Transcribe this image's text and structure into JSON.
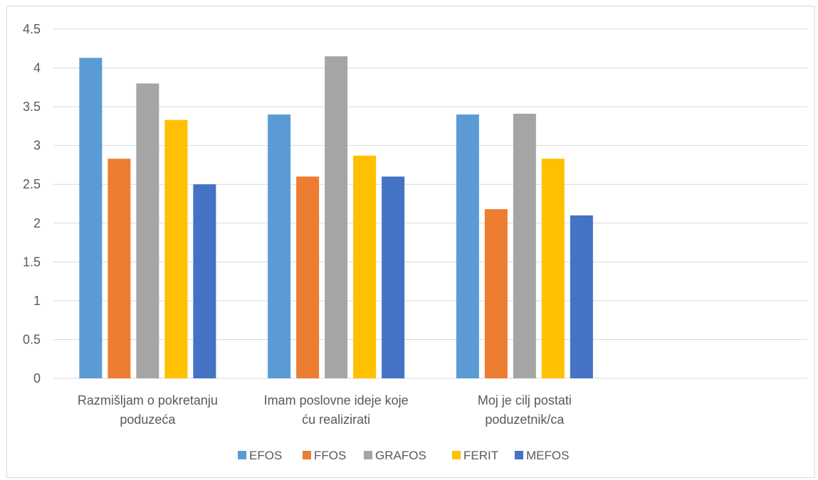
{
  "chart_data": {
    "type": "bar",
    "categories": [
      [
        "Razmišljam o pokretanju",
        "poduzeća"
      ],
      [
        "Imam poslovne ideje koje",
        "ću realizirati"
      ],
      [
        "Moj je cilj postati",
        "poduzetnik/ca"
      ]
    ],
    "series": [
      {
        "name": "EFOS",
        "color": "#5b9bd5",
        "values": [
          4.13,
          3.4,
          3.4
        ]
      },
      {
        "name": "FFOS",
        "color": "#ed7d31",
        "values": [
          2.83,
          2.6,
          2.18
        ]
      },
      {
        "name": "GRAFOS",
        "color": "#a5a5a5",
        "values": [
          3.8,
          4.15,
          3.41
        ]
      },
      {
        "name": "FERIT",
        "color": "#ffc000",
        "values": [
          3.33,
          2.87,
          2.83
        ]
      },
      {
        "name": "MEFOS",
        "color": "#4472c4",
        "values": [
          2.5,
          2.6,
          2.1
        ]
      }
    ],
    "y_ticks": [
      "0",
      "0.5",
      "1",
      "1.5",
      "2",
      "2.5",
      "3",
      "3.5",
      "4",
      "4.5"
    ],
    "ylim": [
      0,
      4.5
    ],
    "title": "",
    "xlabel": "",
    "ylabel": "",
    "grid": true,
    "legend_position": "bottom"
  }
}
